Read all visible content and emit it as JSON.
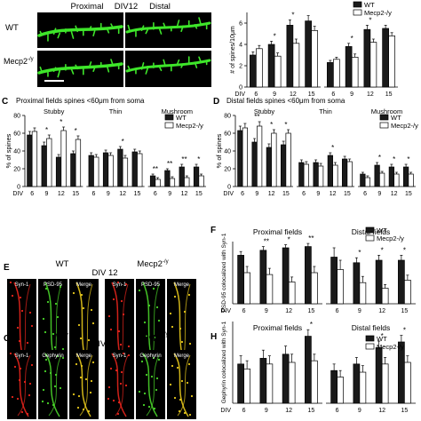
{
  "panel_a": {
    "col_proximal": "Proximal",
    "col_div": "DIV12",
    "col_distal": "Distal",
    "row_wt": "WT",
    "row_ko": "Mecp2",
    "row_ko_sup": "-/y"
  },
  "panel_e": {
    "letter": "E",
    "left_title": "WT",
    "center_title": "DIV 12",
    "right_title": "Mecp2",
    "right_title_sup": "-/y",
    "channels": [
      "Syn-1",
      "PSD-95",
      "Merge"
    ]
  },
  "panel_g": {
    "letter": "G",
    "left_title": "WT",
    "center_title": "DIV 12",
    "right_title": "Mecp2",
    "right_title_sup": "-/y",
    "channels": [
      "Syn-1",
      "Gephyrin",
      "Merge"
    ]
  },
  "colors": {
    "wt": "#1a1a1a",
    "ko": "#ffffff",
    "spine": "#3ee62a",
    "syn": "#e8251c",
    "psd": "#4ad62a",
    "merge": "#e8c91c"
  },
  "chart_data": [
    {
      "id": "B",
      "type": "bar",
      "letter": "",
      "title": "",
      "ylabel": "# of spines/10μm",
      "xlabel": "DIV",
      "ylim": [
        0,
        7
      ],
      "yticks": [
        0,
        2,
        4,
        6
      ],
      "legend": [
        "WT",
        "Mecp2-/y"
      ],
      "legend_position": "top-right",
      "groups": [
        {
          "title": "",
          "categories": [
            "6",
            "9",
            "12",
            "15"
          ],
          "series": [
            {
              "name": "WT",
              "values": [
                3.0,
                4.0,
                5.8,
                6.2
              ],
              "errors": [
                0.3,
                0.3,
                0.5,
                0.5
              ]
            },
            {
              "name": "Mecp2-/y",
              "values": [
                3.6,
                2.9,
                4.1,
                5.3
              ],
              "errors": [
                0.3,
                0.3,
                0.4,
                0.4
              ]
            }
          ],
          "significance": [
            "",
            "*",
            "*",
            ""
          ]
        },
        {
          "title": "",
          "categories": [
            "6",
            "9",
            "12",
            "15"
          ],
          "series": [
            {
              "name": "WT",
              "values": [
                2.3,
                3.8,
                5.4,
                5.5
              ],
              "errors": [
                0.2,
                0.3,
                0.4,
                0.3
              ]
            },
            {
              "name": "Mecp2-/y",
              "values": [
                2.6,
                2.8,
                4.2,
                4.8
              ],
              "errors": [
                0.2,
                0.3,
                0.3,
                0.3
              ]
            }
          ],
          "significance": [
            "",
            "*",
            "*",
            ""
          ]
        }
      ]
    },
    {
      "id": "C",
      "type": "bar",
      "letter": "C",
      "title": "Proximal fields  spines <60μm from soma",
      "ylabel": "% of spines",
      "xlabel": "DIV",
      "ylim": [
        0,
        80
      ],
      "yticks": [
        0,
        20,
        40,
        60,
        80
      ],
      "legend": [
        "WT",
        "Mecp2-/y"
      ],
      "legend_position": "top-right",
      "groups": [
        {
          "title": "Stubby",
          "categories": [
            "6",
            "9",
            "12",
            "15"
          ],
          "series": [
            {
              "name": "WT",
              "values": [
                58,
                46,
                33,
                37
              ],
              "errors": [
                4,
                4,
                3,
                3
              ]
            },
            {
              "name": "Mecp2-/y",
              "values": [
                62,
                54,
                63,
                53
              ],
              "errors": [
                4,
                4,
                4,
                4
              ]
            }
          ],
          "significance": [
            "",
            "*",
            "*",
            "*"
          ]
        },
        {
          "title": "Thin",
          "categories": [
            "6",
            "9",
            "12",
            "15"
          ],
          "series": [
            {
              "name": "WT",
              "values": [
                35,
                38,
                42,
                39
              ],
              "errors": [
                3,
                3,
                3,
                3
              ]
            },
            {
              "name": "Mecp2-/y",
              "values": [
                33,
                35,
                32,
                37
              ],
              "errors": [
                3,
                3,
                3,
                3
              ]
            }
          ],
          "significance": [
            "",
            "",
            "*",
            ""
          ]
        },
        {
          "title": "Mushroom",
          "categories": [
            "6",
            "9",
            "12",
            "15"
          ],
          "series": [
            {
              "name": "WT",
              "values": [
                12,
                18,
                22,
                22
              ],
              "errors": [
                2,
                2,
                3,
                3
              ]
            },
            {
              "name": "Mecp2-/y",
              "values": [
                8,
                9,
                10,
                12
              ],
              "errors": [
                2,
                2,
                2,
                2
              ]
            }
          ],
          "significance": [
            "**",
            "**",
            "**",
            "*"
          ]
        }
      ]
    },
    {
      "id": "D",
      "type": "bar",
      "letter": "D",
      "title": "Distal fields  spines <60μm from soma",
      "ylabel": "% of spines",
      "xlabel": "DIV",
      "ylim": [
        0,
        80
      ],
      "yticks": [
        0,
        20,
        40,
        60,
        80
      ],
      "legend": [
        "WT",
        "Mecp2-/y"
      ],
      "legend_position": "top-right",
      "groups": [
        {
          "title": "Stubby",
          "categories": [
            "6",
            "9",
            "12",
            "15"
          ],
          "series": [
            {
              "name": "WT",
              "values": [
                63,
                50,
                44,
                47
              ],
              "errors": [
                5,
                4,
                4,
                4
              ]
            },
            {
              "name": "Mecp2-/y",
              "values": [
                66,
                68,
                60,
                60
              ],
              "errors": [
                5,
                5,
                4,
                4
              ]
            }
          ],
          "significance": [
            "",
            "**",
            "*",
            "*"
          ]
        },
        {
          "title": "Thin",
          "categories": [
            "6",
            "9",
            "12",
            "15"
          ],
          "series": [
            {
              "name": "WT",
              "values": [
                27,
                27,
                35,
                31
              ],
              "errors": [
                3,
                3,
                3,
                3
              ]
            },
            {
              "name": "Mecp2-/y",
              "values": [
                25,
                23,
                24,
                28
              ],
              "errors": [
                3,
                3,
                3,
                3
              ]
            }
          ],
          "significance": [
            "",
            "",
            "*",
            ""
          ]
        },
        {
          "title": "Mushroom",
          "categories": [
            "6",
            "9",
            "12",
            "15"
          ],
          "series": [
            {
              "name": "WT",
              "values": [
                14,
                24,
                22,
                22
              ],
              "errors": [
                2,
                3,
                3,
                3
              ]
            },
            {
              "name": "Mecp2-/y",
              "values": [
                10,
                15,
                14,
                14
              ],
              "errors": [
                2,
                2,
                2,
                2
              ]
            }
          ],
          "significance": [
            "",
            "*",
            "*",
            "*"
          ]
        }
      ]
    },
    {
      "id": "F",
      "type": "bar",
      "letter": "F",
      "title": "",
      "ylabel": "PSD-95 colocalized with Syn-1",
      "xlabel": "DIV",
      "ylim": [
        0,
        1
      ],
      "yticks": [],
      "legend": [
        "WT",
        "Mecp2-/y"
      ],
      "legend_position": "top-right",
      "groups": [
        {
          "title": "Proximal fields",
          "categories": [
            "6",
            "9",
            "12",
            "15"
          ],
          "series": [
            {
              "name": "WT",
              "values": [
                0.78,
                0.86,
                0.9,
                0.92
              ],
              "errors": [
                0.06,
                0.06,
                0.05,
                0.05
              ]
            },
            {
              "name": "Mecp2-/y",
              "values": [
                0.5,
                0.47,
                0.35,
                0.5
              ],
              "errors": [
                0.1,
                0.1,
                0.08,
                0.1
              ]
            }
          ],
          "significance": [
            "",
            "**",
            "*",
            "**"
          ]
        },
        {
          "title": "Distal fields",
          "categories": [
            "6",
            "9",
            "12",
            "15"
          ],
          "series": [
            {
              "name": "WT",
              "values": [
                0.75,
                0.66,
                0.7,
                0.7
              ],
              "errors": [
                0.15,
                0.08,
                0.08,
                0.08
              ]
            },
            {
              "name": "Mecp2-/y",
              "values": [
                0.55,
                0.34,
                0.25,
                0.38
              ],
              "errors": [
                0.15,
                0.1,
                0.06,
                0.08
              ]
            }
          ],
          "significance": [
            "",
            "*",
            "*",
            "*"
          ]
        }
      ]
    },
    {
      "id": "H",
      "type": "bar",
      "letter": "H",
      "title": "",
      "ylabel": "Gephyrin colocalized with Syn-1",
      "xlabel": "DIV",
      "ylim": [
        0,
        1
      ],
      "yticks": [],
      "legend": [
        "WT",
        "Mecp2-/y"
      ],
      "legend_position": "top-right",
      "groups": [
        {
          "title": "Proximal fields",
          "categories": [
            "6",
            "9",
            "12",
            "15"
          ],
          "series": [
            {
              "name": "WT",
              "values": [
                0.48,
                0.55,
                0.6,
                0.82
              ],
              "errors": [
                0.1,
                0.1,
                0.1,
                0.08
              ]
            },
            {
              "name": "Mecp2-/y",
              "values": [
                0.42,
                0.48,
                0.5,
                0.52
              ],
              "errors": [
                0.1,
                0.1,
                0.1,
                0.08
              ]
            }
          ],
          "significance": [
            "",
            "",
            "",
            "*"
          ]
        },
        {
          "title": "Distal fields",
          "categories": [
            "6",
            "9",
            "12",
            "15"
          ],
          "series": [
            {
              "name": "WT",
              "values": [
                0.4,
                0.48,
                0.68,
                0.75
              ],
              "errors": [
                0.08,
                0.08,
                0.08,
                0.08
              ]
            },
            {
              "name": "Mecp2-/y",
              "values": [
                0.32,
                0.38,
                0.48,
                0.5
              ],
              "errors": [
                0.08,
                0.08,
                0.08,
                0.08
              ]
            }
          ],
          "significance": [
            "",
            "",
            "*",
            "*"
          ]
        }
      ]
    }
  ]
}
